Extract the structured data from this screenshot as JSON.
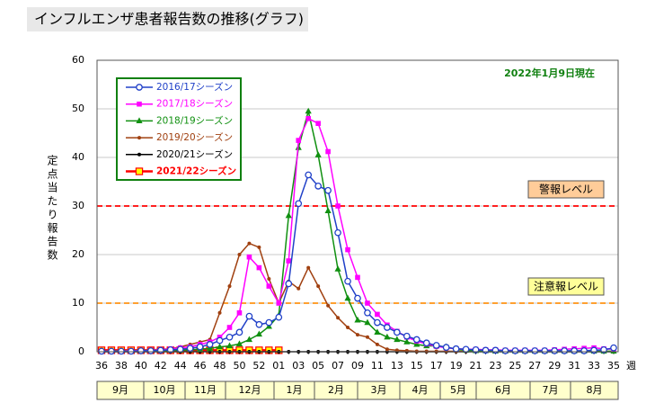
{
  "page_title": "インフルエンザ患者報告数の推移(グラフ)",
  "chart_data": {
    "type": "line",
    "annotation": "2022年1月9日現在",
    "y_label": "定点当たり報告数",
    "x_label": "週",
    "categories": [
      "36",
      null,
      "38",
      null,
      "40",
      null,
      "42",
      null,
      "44",
      null,
      "46",
      null,
      "48",
      null,
      "50",
      null,
      "52",
      null,
      "01",
      null,
      "03",
      null,
      "05",
      null,
      "07",
      null,
      "09",
      null,
      "11",
      null,
      "13",
      null,
      "15",
      null,
      "17",
      null,
      "19",
      null,
      "21",
      null,
      "23",
      null,
      "25",
      null,
      "27",
      null,
      "29",
      null,
      "31",
      null,
      "33",
      null,
      "35"
    ],
    "months": [
      "9月",
      "10月",
      "11月",
      "12月",
      "1月",
      "2月",
      "3月",
      "4月",
      "5月",
      "6月",
      "7月",
      "8月"
    ],
    "ylim": [
      0,
      60
    ],
    "yticks": [
      0,
      10,
      20,
      30,
      40,
      50,
      60
    ],
    "grid": true,
    "legend_position": "upper left",
    "reference_lines": [
      {
        "label": "警報レベル",
        "value": 30,
        "color": "#ff2020",
        "box_color": "#ffcc99"
      },
      {
        "label": "注意報レベル",
        "value": 10,
        "color": "#ffa030",
        "box_color": "#ffff99"
      }
    ],
    "series": [
      {
        "name": "2016/17シーズン",
        "color": "#2040c8",
        "marker": "open-circle",
        "values": [
          0.1,
          0.1,
          0.1,
          0.1,
          0.2,
          0.2,
          0.3,
          0.4,
          0.5,
          0.7,
          1.0,
          1.5,
          2.3,
          3.0,
          4.0,
          7.3,
          5.6,
          6.0,
          7.1,
          14.0,
          30.5,
          36.4,
          34.1,
          33.2,
          24.5,
          14.5,
          11.0,
          8.0,
          6.0,
          5.0,
          4.0,
          3.2,
          2.5,
          1.8,
          1.3,
          0.9,
          0.6,
          0.5,
          0.4,
          0.3,
          0.3,
          0.2,
          0.2,
          0.2,
          0.2,
          0.2,
          0.2,
          0.2,
          0.2,
          0.2,
          0.3,
          0.4,
          0.8
        ]
      },
      {
        "name": "2017/18シーズン",
        "color": "#ff00ff",
        "marker": "square",
        "values": [
          0.1,
          0.1,
          0.1,
          0.2,
          0.2,
          0.3,
          0.4,
          0.6,
          0.8,
          1.0,
          1.5,
          2.0,
          3.0,
          5.0,
          8.0,
          19.5,
          17.3,
          13.5,
          10.0,
          18.7,
          43.5,
          48.0,
          47.0,
          41.2,
          30.0,
          21.0,
          15.3,
          10.0,
          7.7,
          5.5,
          4.2,
          3.0,
          2.2,
          1.6,
          1.1,
          0.8,
          0.6,
          0.5,
          0.5,
          0.4,
          0.4,
          0.3,
          0.3,
          0.3,
          0.3,
          0.3,
          0.4,
          0.5,
          0.6,
          0.7,
          0.8,
          0.6,
          0.5
        ]
      },
      {
        "name": "2018/19シーズン",
        "color": "#109010",
        "marker": "triangle",
        "values": [
          0.1,
          0.1,
          0.1,
          0.1,
          0.1,
          0.2,
          0.2,
          0.3,
          0.3,
          0.4,
          0.5,
          0.7,
          1.0,
          1.2,
          1.6,
          2.5,
          3.6,
          5.2,
          7.5,
          28.0,
          42.0,
          49.5,
          40.5,
          29.0,
          17.0,
          11.0,
          6.5,
          6.0,
          4.0,
          3.0,
          2.5,
          2.0,
          1.5,
          1.2,
          1.2,
          1.0,
          0.5,
          0.3,
          0.2,
          0.2,
          0.1,
          0.1,
          0.1,
          0.1,
          0.1,
          0.1,
          0.1,
          0.1,
          0.1,
          0.1,
          0.1,
          0.1,
          0.1
        ]
      },
      {
        "name": "2019/20シーズン",
        "color": "#a04010",
        "marker": "dot",
        "values": [
          0.1,
          0.2,
          0.2,
          0.3,
          0.3,
          0.4,
          0.5,
          0.6,
          1.0,
          1.5,
          2.0,
          2.5,
          8.0,
          13.5,
          20.0,
          22.3,
          21.5,
          15.0,
          10.0,
          14.5,
          13.0,
          17.3,
          13.5,
          9.5,
          7.0,
          5.0,
          3.5,
          3.0,
          1.5,
          0.5,
          0.3,
          0.2,
          0.1,
          0.1,
          0.1,
          0.1,
          0.1,
          0.1,
          0.1,
          0.1,
          0.1,
          0.1,
          0.1,
          0.1,
          0.1,
          0.1,
          0.1,
          0.1,
          0.1,
          0.1,
          0.1,
          0.1,
          0.1
        ]
      },
      {
        "name": "2020/21シーズン",
        "color": "#000000",
        "marker": "dot",
        "values": [
          0,
          0,
          0,
          0,
          0,
          0,
          0,
          0,
          0,
          0,
          0,
          0,
          0,
          0,
          0,
          0,
          0,
          0,
          0,
          0,
          0,
          0,
          0,
          0,
          0,
          0,
          0,
          0,
          0,
          0,
          0,
          0,
          0,
          0,
          0,
          0,
          0,
          0,
          0,
          0,
          0,
          0,
          0,
          0,
          0,
          0,
          0,
          0,
          0,
          0,
          0,
          0,
          0
        ]
      },
      {
        "name": "2021/22シーズン",
        "color": "#ff0000",
        "marker": "yellow-square",
        "values": [
          0.3,
          0.3,
          0.3,
          0.3,
          0.3,
          0.3,
          0.3,
          0.3,
          0.3,
          0.3,
          0.3,
          0.3,
          0.3,
          0.3,
          0.3,
          0.3,
          0.3,
          0.3,
          0.3,
          null,
          null,
          null,
          null,
          null,
          null,
          null,
          null,
          null,
          null,
          null,
          null,
          null,
          null,
          null,
          null,
          null,
          null,
          null,
          null,
          null,
          null,
          null,
          null,
          null,
          null,
          null,
          null,
          null,
          null,
          null,
          null,
          null,
          null
        ]
      }
    ]
  }
}
